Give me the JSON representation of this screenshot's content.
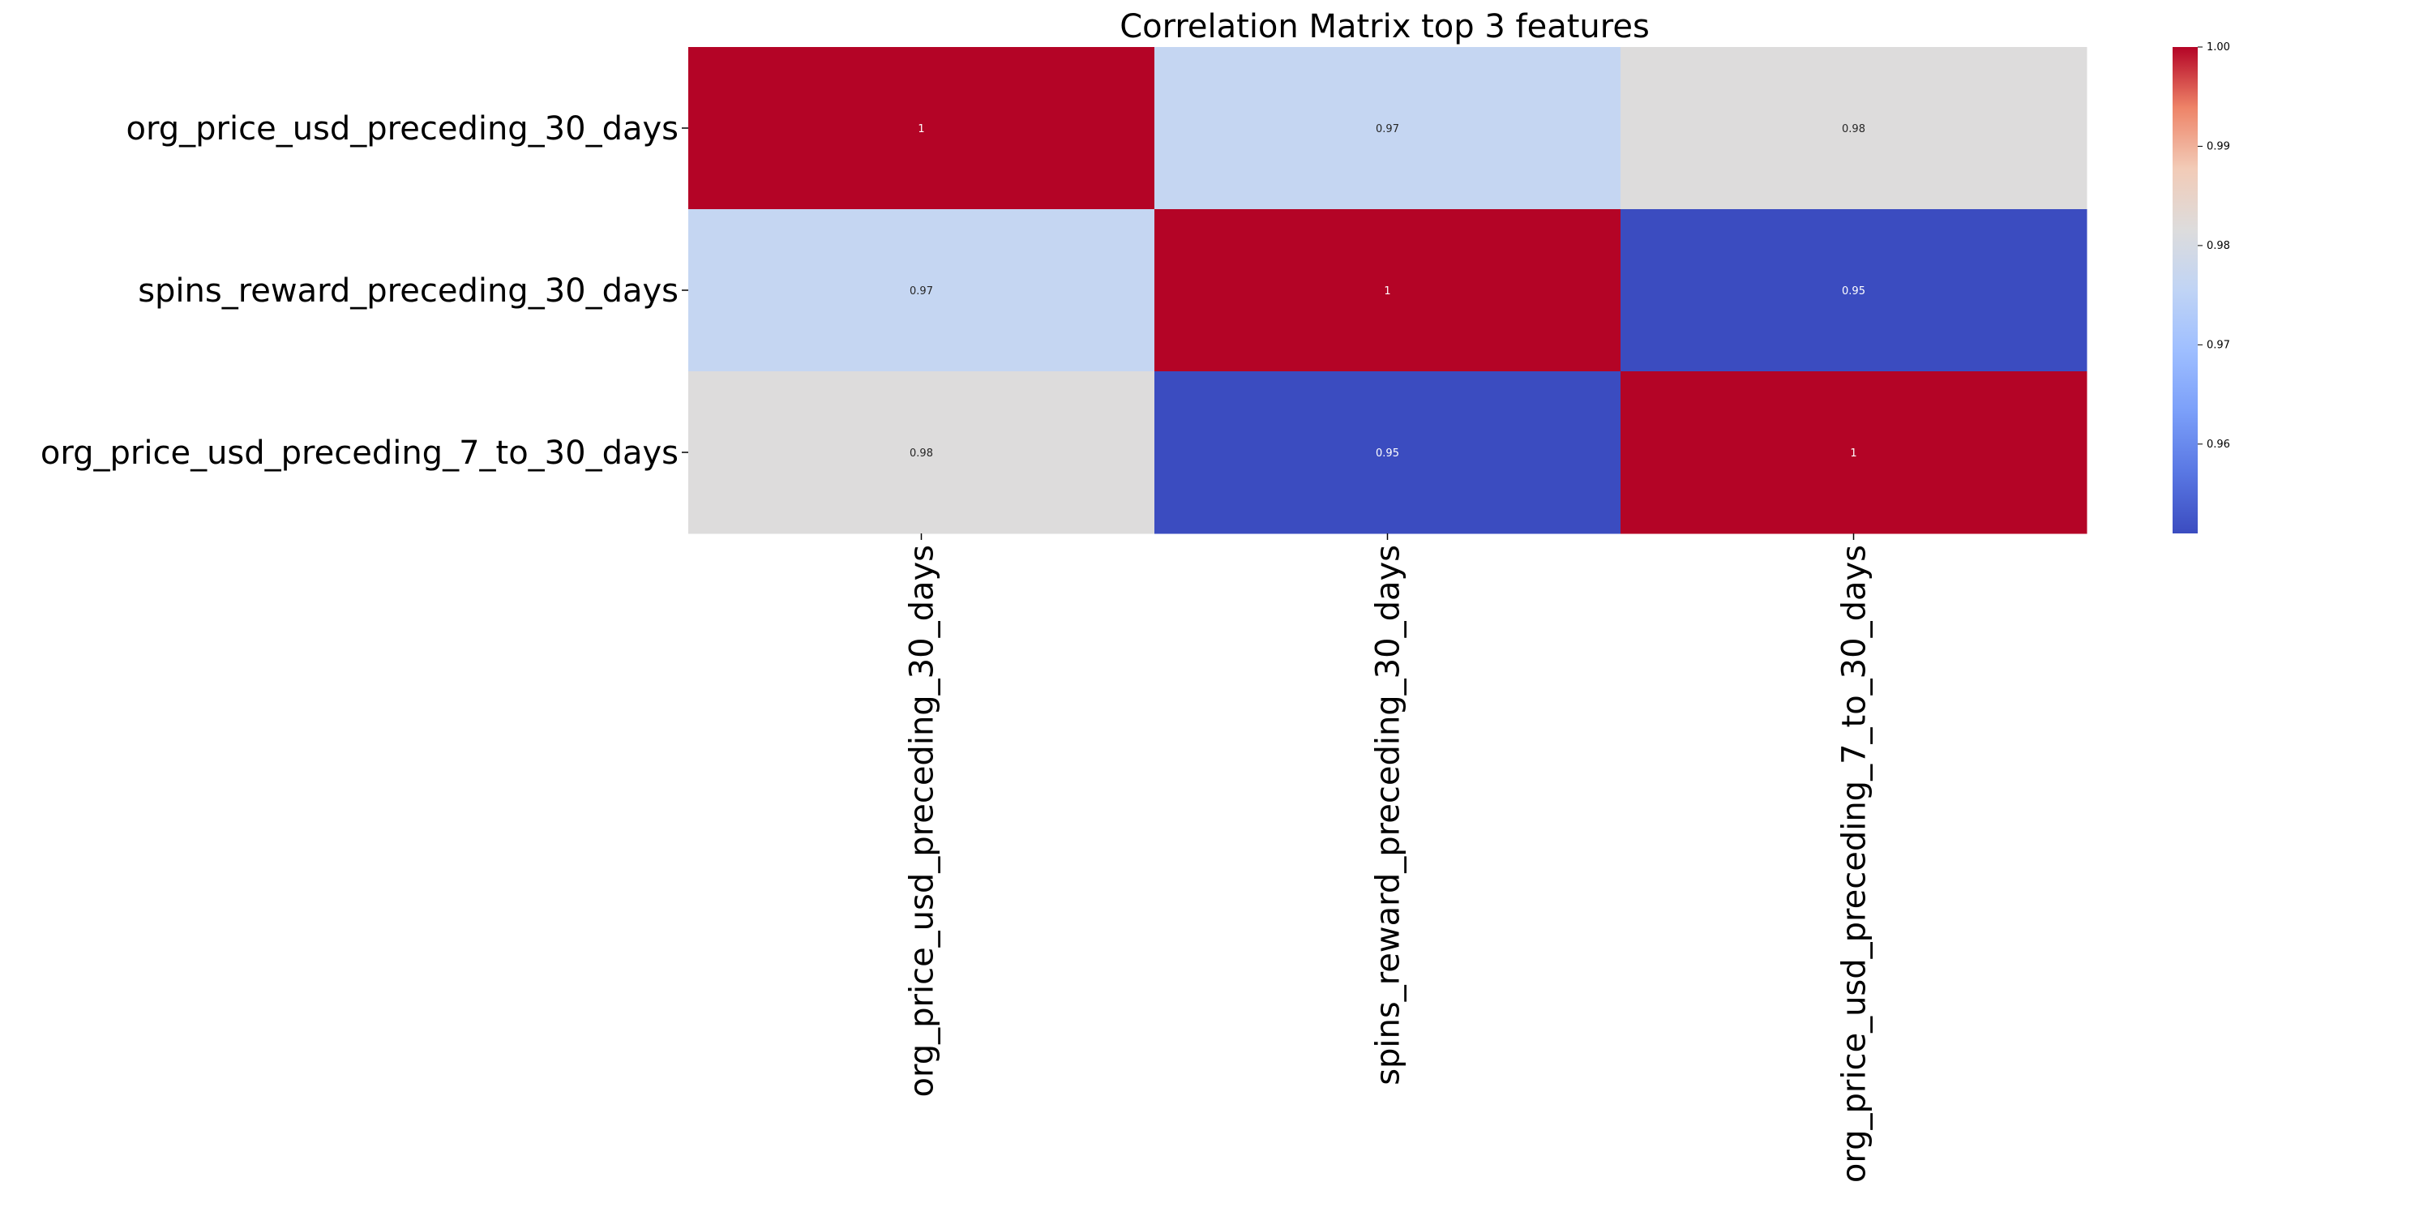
{
  "chart_data": {
    "type": "heatmap",
    "title": "Correlation Matrix top 3 features",
    "row_labels": [
      "org_price_usd_preceding_30_days",
      "spins_reward_preceding_30_days",
      "org_price_usd_preceding_7_to_30_days"
    ],
    "col_labels": [
      "org_price_usd_preceding_30_days",
      "spins_reward_preceding_30_days",
      "org_price_usd_preceding_7_to_30_days"
    ],
    "values": [
      [
        1.0,
        0.97,
        0.98
      ],
      [
        0.97,
        1.0,
        0.95
      ],
      [
        0.98,
        0.95,
        1.0
      ]
    ],
    "annotations": [
      [
        "1",
        "0.97",
        "0.98"
      ],
      [
        "0.97",
        "1",
        "0.95"
      ],
      [
        "0.98",
        "0.95",
        "1"
      ]
    ],
    "colormap": "coolwarm",
    "vmin": 0.951,
    "vmax": 1.0,
    "colorbar": {
      "ticks": [
        0.96,
        0.97,
        0.98,
        0.99,
        1.0
      ],
      "tick_labels": [
        "0.96",
        "0.97",
        "0.98",
        "0.99",
        "1.00"
      ],
      "placement": "right"
    },
    "cell_colors": [
      [
        "#b40426",
        "#c5d6f2",
        "#dddcdc"
      ],
      [
        "#c5d6f2",
        "#b40426",
        "#3b4cc0"
      ],
      [
        "#dddcdc",
        "#3b4cc0",
        "#b40426"
      ]
    ]
  }
}
